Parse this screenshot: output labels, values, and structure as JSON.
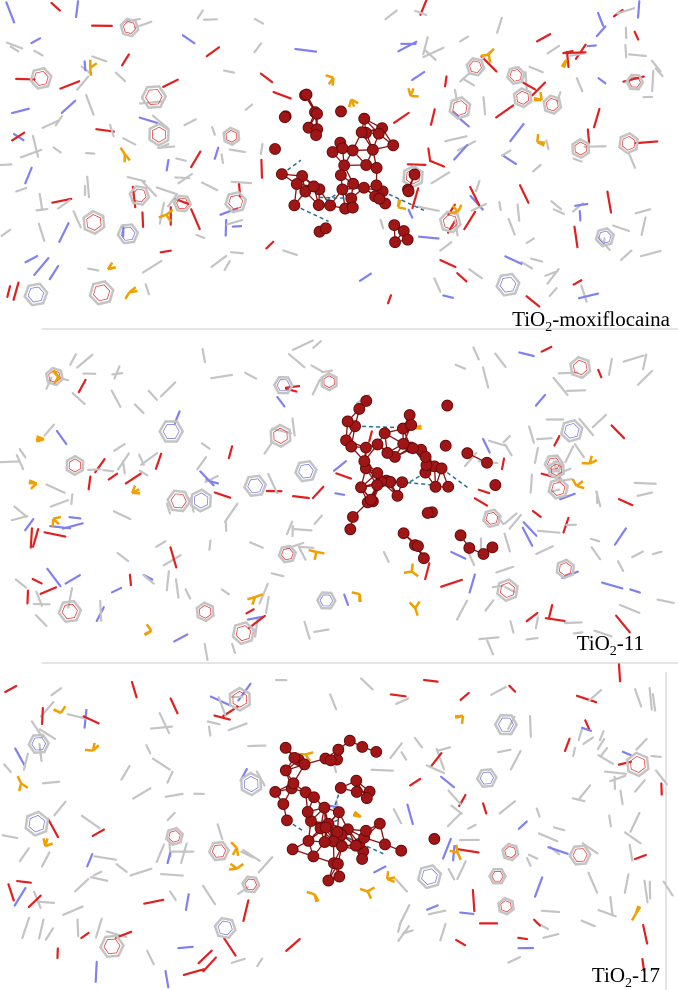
{
  "panels": [
    {
      "label": {
        "main": "TiO",
        "sub": "2",
        "rest": "-moxiflocaina"
      }
    },
    {
      "label": {
        "main": "TiO",
        "sub": "2",
        "rest": "-11"
      }
    },
    {
      "label": {
        "main": "TiO",
        "sub": "2",
        "rest": "-17"
      }
    }
  ]
}
